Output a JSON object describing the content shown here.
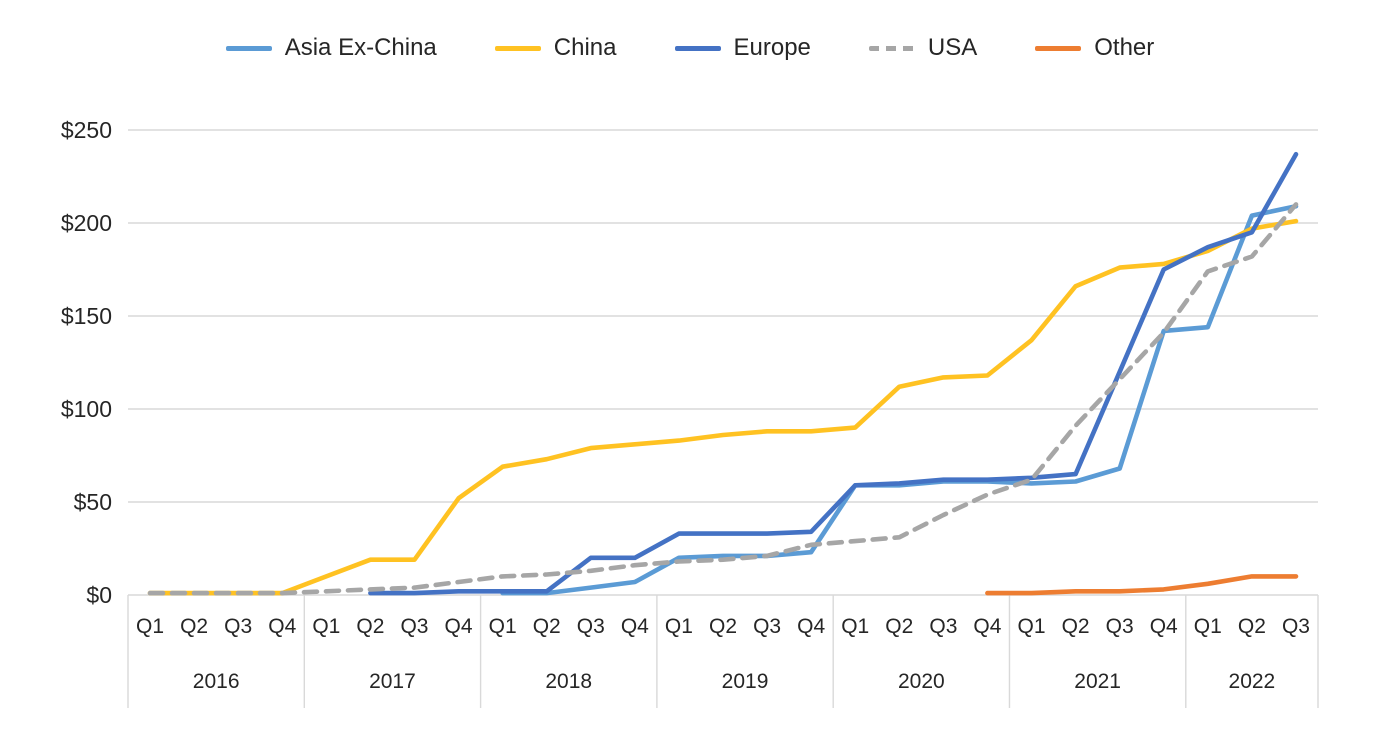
{
  "legend": {
    "items": [
      {
        "label": "Asia Ex-China"
      },
      {
        "label": "China"
      },
      {
        "label": "Europe"
      },
      {
        "label": "USA"
      },
      {
        "label": "Other"
      }
    ]
  },
  "chart_data": {
    "type": "line",
    "title": "",
    "unit": "$",
    "ylabel": "",
    "xlabel": "",
    "ylim": [
      0,
      250
    ],
    "y_tick_step": 50,
    "y_ticks": [
      "$0",
      "$50",
      "$100",
      "$150",
      "$200",
      "$250"
    ],
    "grid": true,
    "legend_position": "top",
    "x_categories": {
      "years": [
        {
          "label": "2016",
          "quarters": [
            "Q1",
            "Q2",
            "Q3",
            "Q4"
          ]
        },
        {
          "label": "2017",
          "quarters": [
            "Q1",
            "Q2",
            "Q3",
            "Q4"
          ]
        },
        {
          "label": "2018",
          "quarters": [
            "Q1",
            "Q2",
            "Q3",
            "Q4"
          ]
        },
        {
          "label": "2019",
          "quarters": [
            "Q1",
            "Q2",
            "Q3",
            "Q4"
          ]
        },
        {
          "label": "2020",
          "quarters": [
            "Q1",
            "Q2",
            "Q3",
            "Q4"
          ]
        },
        {
          "label": "2021",
          "quarters": [
            "Q1",
            "Q2",
            "Q3",
            "Q4"
          ]
        },
        {
          "label": "2022",
          "quarters": [
            "Q1",
            "Q2",
            "Q3"
          ]
        }
      ]
    },
    "series": [
      {
        "name": "Asia Ex-China",
        "color": "#5B9BD5",
        "dash": false,
        "values": [
          null,
          null,
          null,
          null,
          null,
          null,
          null,
          null,
          1,
          1,
          4,
          7,
          20,
          21,
          21,
          23,
          59,
          59,
          61,
          61,
          60,
          61,
          68,
          142,
          144,
          204,
          209
        ]
      },
      {
        "name": "China",
        "color": "#FFC222",
        "dash": false,
        "values": [
          1,
          1,
          1,
          1,
          10,
          19,
          19,
          52,
          69,
          73,
          79,
          81,
          83,
          86,
          88,
          88,
          90,
          112,
          117,
          118,
          137,
          166,
          176,
          178,
          185,
          197,
          201
        ]
      },
      {
        "name": "Europe",
        "color": "#4472C4",
        "dash": false,
        "values": [
          null,
          null,
          null,
          null,
          null,
          1,
          1,
          2,
          2,
          2,
          20,
          20,
          33,
          33,
          33,
          34,
          59,
          60,
          62,
          62,
          63,
          65,
          120,
          175,
          187,
          195,
          237
        ]
      },
      {
        "name": "USA",
        "color": "#A6A6A6",
        "dash": true,
        "values": [
          1,
          1,
          1,
          1,
          2,
          3,
          4,
          7,
          10,
          11,
          13,
          16,
          18,
          19,
          21,
          27,
          29,
          31,
          43,
          54,
          62,
          91,
          116,
          141,
          174,
          182,
          210
        ]
      },
      {
        "name": "Other",
        "color": "#ED7D31",
        "dash": false,
        "values": [
          null,
          null,
          null,
          null,
          null,
          null,
          null,
          null,
          null,
          null,
          null,
          null,
          null,
          null,
          null,
          null,
          null,
          null,
          null,
          1,
          1,
          2,
          2,
          3,
          6,
          10,
          10
        ]
      }
    ],
    "colors": {
      "gridline": "#D9D9D9",
      "axis_text": "#262626",
      "background": "#FFFFFF"
    }
  }
}
